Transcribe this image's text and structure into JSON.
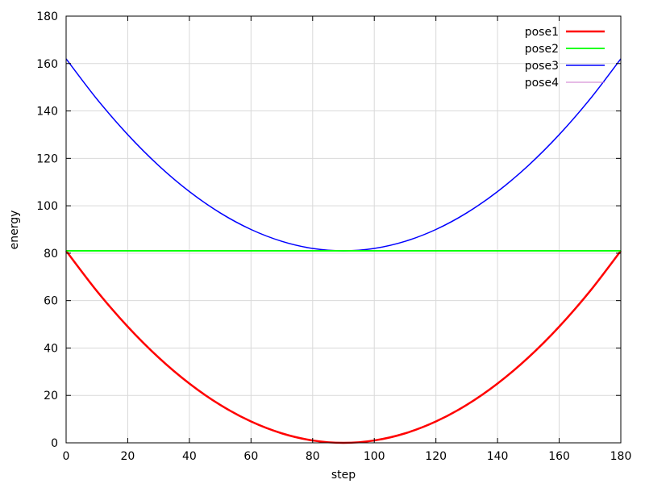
{
  "chart_data": {
    "type": "line",
    "title": "",
    "xlabel": "step",
    "ylabel": "energy",
    "xlim": [
      0,
      180
    ],
    "ylim": [
      0,
      180
    ],
    "x_ticks": [
      0,
      20,
      40,
      60,
      80,
      100,
      120,
      140,
      160,
      180
    ],
    "y_ticks": [
      0,
      20,
      40,
      60,
      80,
      100,
      120,
      140,
      160,
      180
    ],
    "grid": true,
    "legend_position": "top-right",
    "x": [
      0,
      10,
      20,
      30,
      40,
      50,
      60,
      70,
      80,
      90,
      100,
      110,
      120,
      130,
      140,
      150,
      160,
      170,
      180
    ],
    "series": [
      {
        "name": "pose1",
        "color": "#ff0000",
        "values": [
          81,
          64,
          49,
          36,
          25,
          16,
          9,
          4,
          1,
          0,
          1,
          4,
          9,
          16,
          25,
          36,
          49,
          64,
          81
        ]
      },
      {
        "name": "pose2",
        "color": "#00ff00",
        "values": [
          81,
          81,
          81,
          81,
          81,
          81,
          81,
          81,
          81,
          81,
          81,
          81,
          81,
          81,
          81,
          81,
          81,
          81,
          81
        ]
      },
      {
        "name": "pose3",
        "color": "#0000ff",
        "values": [
          162,
          145,
          130,
          117,
          106,
          97,
          90,
          85,
          82,
          81,
          82,
          85,
          90,
          97,
          106,
          117,
          130,
          145,
          162
        ]
      },
      {
        "name": "pose4",
        "color": "#cc77cc",
        "values": [
          81,
          81,
          81,
          81,
          81,
          81,
          81,
          81,
          81,
          81,
          81,
          81,
          81,
          81,
          81,
          81,
          81,
          81,
          81
        ]
      }
    ]
  }
}
